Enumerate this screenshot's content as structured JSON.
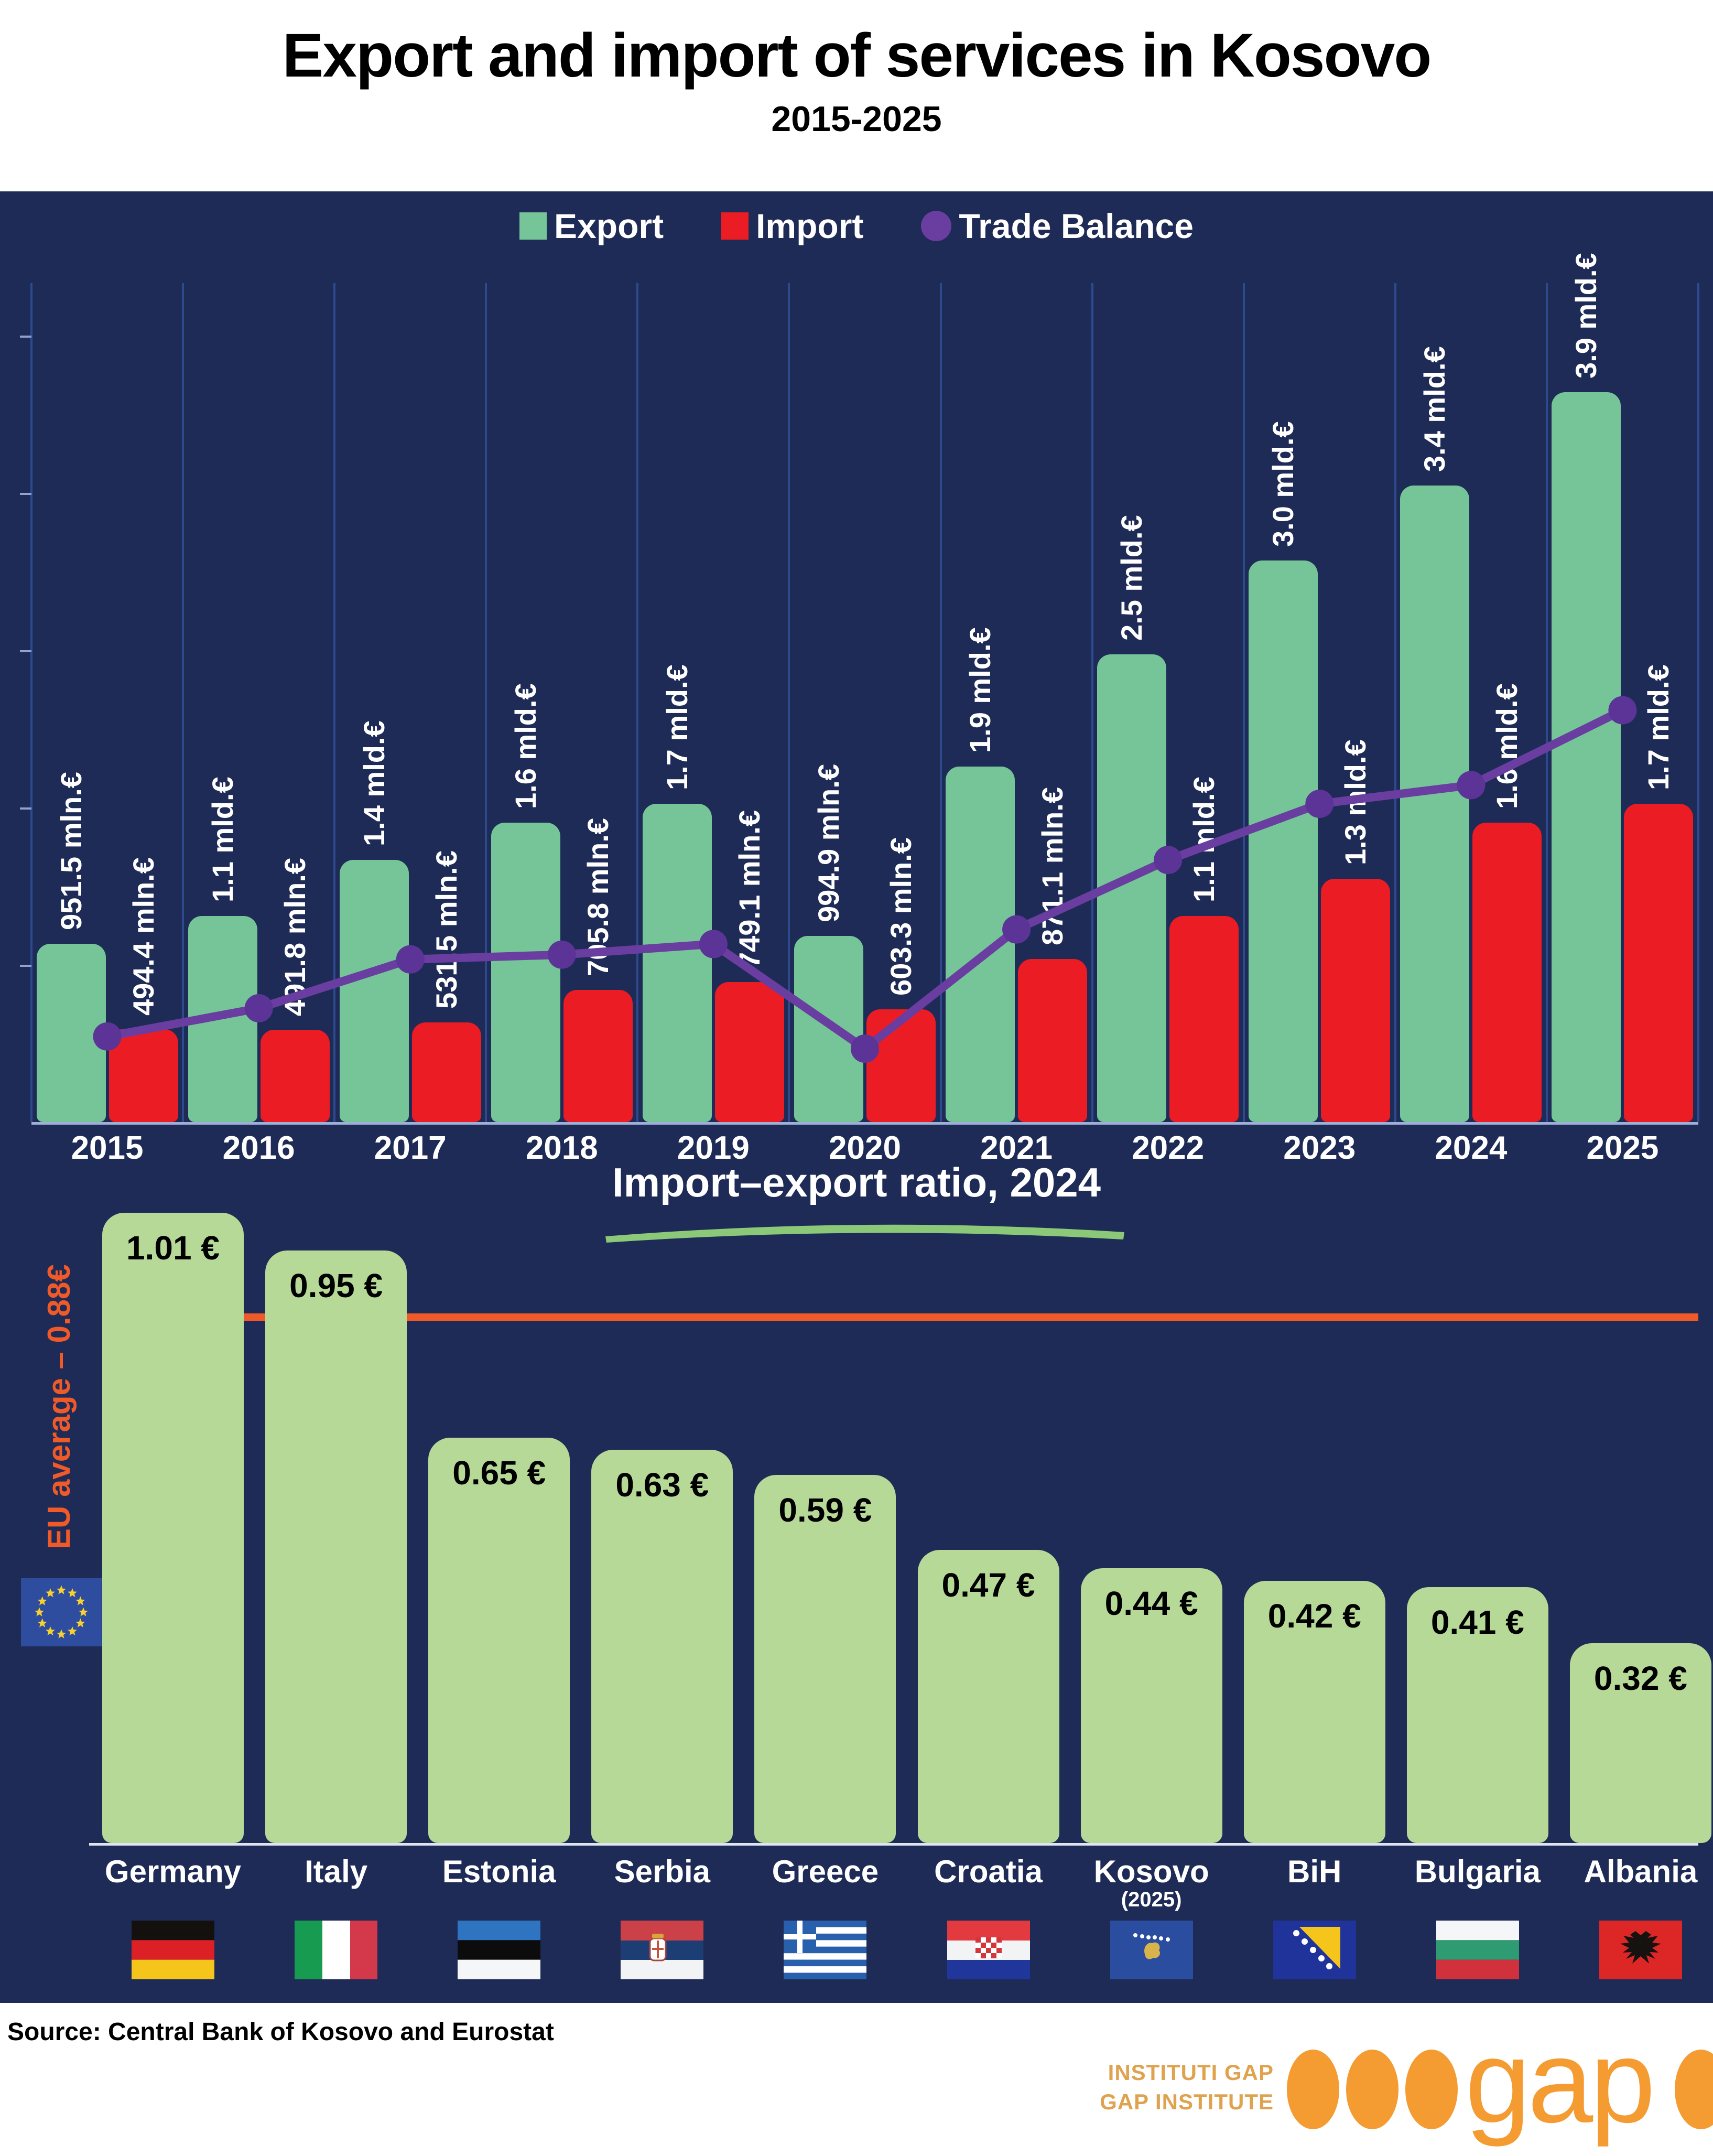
{
  "title": "Export and import of services in Kosovo",
  "subtitle": "2015-2025",
  "colors": {
    "background": "#1e2b57",
    "export": "#75c598",
    "import": "#ec1c24",
    "trade_balance": "#6a3da0",
    "chart2_bar": "#b6d998",
    "eu_accent": "#ef5a28",
    "logo_orange": "#f49b32"
  },
  "legend": {
    "export": "Export",
    "import": "Import",
    "trade_balance": "Trade Balance"
  },
  "chart_data": [
    {
      "type": "bar",
      "title": "Export and import of services in Kosovo",
      "subtitle": "2015-2025",
      "categories": [
        "2015",
        "2016",
        "2017",
        "2018",
        "2019",
        "2020",
        "2021",
        "2022",
        "2023",
        "2024",
        "2025"
      ],
      "series": [
        {
          "name": "Export",
          "style": "bar",
          "values_mld": [
            0.9515,
            1.1,
            1.4,
            1.6,
            1.7,
            0.9949,
            1.9,
            2.5,
            3.0,
            3.4,
            3.9
          ],
          "labels": [
            "951.5 mln.€",
            "1.1 mld.€",
            "1.4 mld.€",
            "1.6 mld.€",
            "1.7 mld.€",
            "994.9 mln.€",
            "1.9 mld.€",
            "2.5 mld.€",
            "3.0 mld.€",
            "3.4 mld.€",
            "3.9 mld.€"
          ]
        },
        {
          "name": "Import",
          "style": "bar",
          "values_mld": [
            0.4944,
            0.4918,
            0.5315,
            0.7058,
            0.7491,
            0.6033,
            0.8711,
            1.1,
            1.3,
            1.6,
            1.7
          ],
          "labels": [
            "494.4 mln.€",
            "491.8 mln.€",
            "531.5 mln.€",
            "705.8 mln.€",
            "749.1 mln.€",
            "603.3 mln.€",
            "871.1 mln.€",
            "1.1 mld.€",
            "1.3 mld.€",
            "1.6 mld.€",
            "1.7 mld.€"
          ]
        },
        {
          "name": "Trade Balance",
          "style": "line",
          "values_mld": [
            0.457,
            0.608,
            0.869,
            0.894,
            0.951,
            0.392,
            1.029,
            1.4,
            1.7,
            1.8,
            2.2
          ]
        }
      ],
      "ylim": [
        0,
        4.2
      ],
      "grid": "vertical",
      "legend_position": "top"
    },
    {
      "type": "bar",
      "title": "Import–export ratio, 2024",
      "categories": [
        "Germany",
        "Italy",
        "Estonia",
        "Serbia",
        "Greece",
        "Croatia",
        "Kosovo",
        "BiH",
        "Bulgaria",
        "Albania"
      ],
      "values": [
        1.01,
        0.95,
        0.65,
        0.63,
        0.59,
        0.47,
        0.44,
        0.42,
        0.41,
        0.32
      ],
      "labels": [
        "1.01 €",
        "0.95 €",
        "0.65 €",
        "0.63 €",
        "0.59 €",
        "0.47 €",
        "0.44 €",
        "0.42 €",
        "0.41 €",
        "0.32 €"
      ],
      "flags": [
        "germany",
        "italy",
        "estonia",
        "serbia",
        "greece",
        "croatia",
        "kosovo",
        "bih",
        "bulgaria",
        "albania"
      ],
      "kosovo_note": "(2025)",
      "reference_line": {
        "label": "EU average – 0.88€",
        "value": 0.88
      },
      "ylim": [
        0,
        1.05
      ]
    }
  ],
  "source": "Source: Central Bank of Kosovo and Eurostat",
  "logo": {
    "line1": "INSTITUTI GAP",
    "line2": "GAP INSTITUTE",
    "wordmark": "gap"
  }
}
